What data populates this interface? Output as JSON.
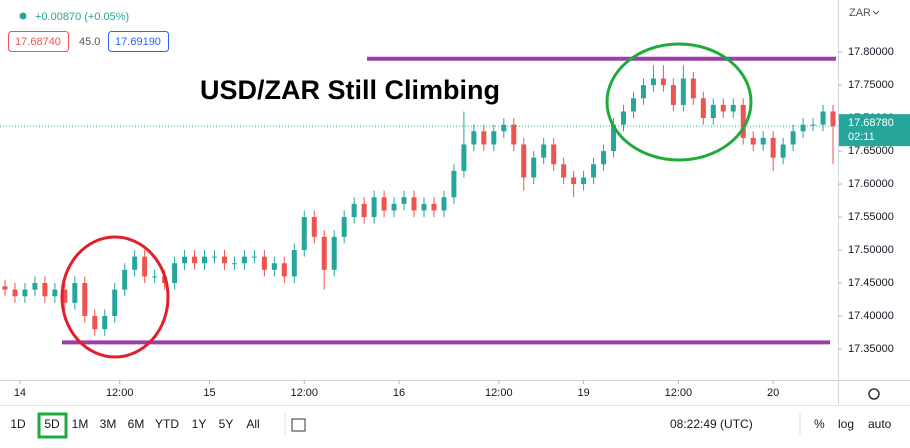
{
  "header": {
    "change": "+0.00870 (+0.05%)",
    "bid": "17.68740",
    "spread": "45.0",
    "ask": "17.69190",
    "currency": "ZAR"
  },
  "chart_data": {
    "type": "candlestick",
    "title": "USD/ZAR Still Climbing",
    "open": [
      17.445,
      17.44,
      17.43,
      17.44,
      17.45,
      17.43,
      17.44,
      17.42,
      17.45,
      17.4,
      17.38,
      17.4,
      17.44,
      17.47,
      17.49,
      17.46,
      17.46,
      17.45,
      17.48,
      17.49,
      17.48,
      17.49,
      17.49,
      17.48,
      17.48,
      17.49,
      17.49,
      17.47,
      17.48,
      17.46,
      17.5,
      17.55,
      17.52,
      17.47,
      17.52,
      17.55,
      17.57,
      17.55,
      17.58,
      17.56,
      17.57,
      17.58,
      17.56,
      17.57,
      17.56,
      17.58,
      17.62,
      17.66,
      17.68,
      17.66,
      17.68,
      17.69,
      17.66,
      17.61,
      17.64,
      17.66,
      17.63,
      17.61,
      17.6,
      17.61,
      17.63,
      17.65,
      17.69,
      17.71,
      17.73,
      17.75,
      17.76,
      17.75,
      17.72,
      17.76,
      17.73,
      17.7,
      17.72,
      17.71,
      17.72,
      17.67,
      17.66,
      17.67,
      17.64,
      17.66,
      17.68,
      17.69,
      17.69,
      17.71
    ],
    "high": [
      17.455,
      17.45,
      17.45,
      17.46,
      17.46,
      17.45,
      17.45,
      17.46,
      17.46,
      17.41,
      17.41,
      17.45,
      17.48,
      17.5,
      17.5,
      17.47,
      17.47,
      17.49,
      17.5,
      17.5,
      17.5,
      17.5,
      17.5,
      17.49,
      17.5,
      17.5,
      17.5,
      17.49,
      17.49,
      17.51,
      17.56,
      17.56,
      17.53,
      17.53,
      17.56,
      17.58,
      17.58,
      17.59,
      17.59,
      17.58,
      17.59,
      17.59,
      17.58,
      17.58,
      17.59,
      17.63,
      17.71,
      17.69,
      17.69,
      17.69,
      17.7,
      17.7,
      17.67,
      17.65,
      17.67,
      17.67,
      17.64,
      17.62,
      17.62,
      17.64,
      17.66,
      17.7,
      17.72,
      17.74,
      17.76,
      17.78,
      17.78,
      17.76,
      17.78,
      17.77,
      17.74,
      17.73,
      17.73,
      17.73,
      17.73,
      17.68,
      17.68,
      17.68,
      17.67,
      17.69,
      17.7,
      17.7,
      17.72,
      17.72
    ],
    "low": [
      17.43,
      17.42,
      17.42,
      17.43,
      17.42,
      17.42,
      17.41,
      17.41,
      17.39,
      17.37,
      17.37,
      17.39,
      17.43,
      17.46,
      17.45,
      17.45,
      17.44,
      17.44,
      17.47,
      17.47,
      17.47,
      17.48,
      17.47,
      17.47,
      17.47,
      17.48,
      17.46,
      17.46,
      17.45,
      17.45,
      17.49,
      17.51,
      17.44,
      17.46,
      17.51,
      17.54,
      17.54,
      17.54,
      17.55,
      17.55,
      17.56,
      17.55,
      17.55,
      17.55,
      17.55,
      17.57,
      17.61,
      17.65,
      17.65,
      17.65,
      17.67,
      17.65,
      17.59,
      17.6,
      17.63,
      17.62,
      17.6,
      17.58,
      17.59,
      17.6,
      17.62,
      17.64,
      17.68,
      17.7,
      17.72,
      17.74,
      17.74,
      17.71,
      17.71,
      17.72,
      17.69,
      17.69,
      17.7,
      17.7,
      17.66,
      17.65,
      17.65,
      17.62,
      17.63,
      17.65,
      17.67,
      17.68,
      17.68,
      17.63
    ],
    "close": [
      17.44,
      17.43,
      17.44,
      17.45,
      17.43,
      17.44,
      17.42,
      17.45,
      17.4,
      17.38,
      17.4,
      17.44,
      17.47,
      17.49,
      17.46,
      17.46,
      17.45,
      17.48,
      17.49,
      17.48,
      17.49,
      17.49,
      17.48,
      17.48,
      17.49,
      17.49,
      17.47,
      17.48,
      17.46,
      17.5,
      17.55,
      17.52,
      17.47,
      17.52,
      17.55,
      17.57,
      17.55,
      17.58,
      17.56,
      17.57,
      17.58,
      17.56,
      17.57,
      17.56,
      17.58,
      17.62,
      17.66,
      17.68,
      17.66,
      17.68,
      17.69,
      17.66,
      17.61,
      17.64,
      17.66,
      17.63,
      17.61,
      17.6,
      17.61,
      17.63,
      17.65,
      17.69,
      17.71,
      17.73,
      17.75,
      17.76,
      17.75,
      17.72,
      17.76,
      17.73,
      17.7,
      17.72,
      17.71,
      17.72,
      17.67,
      17.66,
      17.67,
      17.64,
      17.66,
      17.68,
      17.69,
      17.69,
      17.71,
      17.6878
    ],
    "up_color": "#26a69a",
    "down_color": "#ef5350",
    "xlim": [
      -0.5,
      83.5
    ],
    "xticks": [
      {
        "value": 1.5,
        "label": "14"
      },
      {
        "value": 11.5,
        "label": "12:00"
      },
      {
        "value": 20.5,
        "label": "15"
      },
      {
        "value": 30,
        "label": "12:00"
      },
      {
        "value": 39.5,
        "label": "16"
      },
      {
        "value": 49.5,
        "label": "12:00"
      },
      {
        "value": 58,
        "label": "19"
      },
      {
        "value": 67.5,
        "label": "12:00"
      },
      {
        "value": 77,
        "label": "20"
      }
    ],
    "ylim": [
      17.303,
      17.879
    ],
    "yticks": [
      {
        "value": 17.35,
        "label": "17.35000"
      },
      {
        "value": 17.4,
        "label": "17.40000"
      },
      {
        "value": 17.45,
        "label": "17.45000"
      },
      {
        "value": 17.5,
        "label": "17.50000"
      },
      {
        "value": 17.55,
        "label": "17.55000"
      },
      {
        "value": 17.6,
        "label": "17.60000"
      },
      {
        "value": 17.65,
        "label": "17.65000"
      },
      {
        "value": 17.7,
        "label": "17.70000"
      },
      {
        "value": 17.75,
        "label": "17.75000"
      },
      {
        "value": 17.8,
        "label": "17.80000"
      }
    ],
    "levels": [
      17.79,
      17.36
    ],
    "level_color": "#9c3fa8",
    "last_price": {
      "value": 17.6878,
      "label": "17.68780"
    },
    "countdown": "02:11"
  },
  "toolbar": {
    "ranges": [
      "1D",
      "5D",
      "1M",
      "3M",
      "6M",
      "YTD",
      "1Y",
      "5Y",
      "All"
    ],
    "clock": "08:22:49 (UTC)",
    "percent": "%",
    "log": "log",
    "auto": "auto"
  }
}
